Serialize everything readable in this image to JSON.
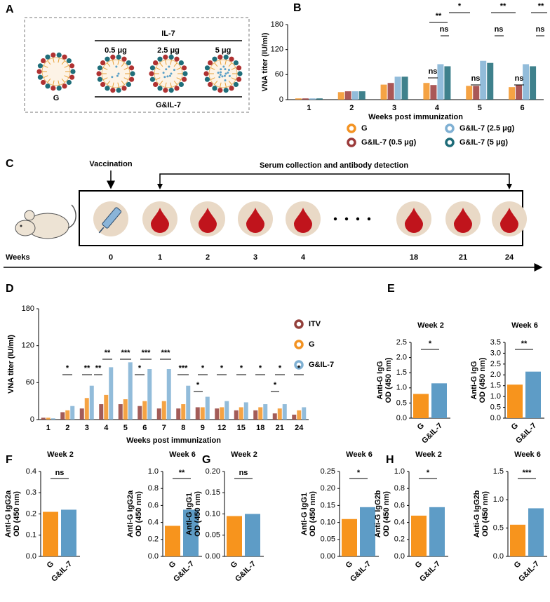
{
  "panel_labels": [
    "A",
    "B",
    "C",
    "D",
    "E",
    "F",
    "G",
    "H"
  ],
  "diagram_a": {
    "top_label": "IL-7",
    "doses": [
      "0.5 μg",
      "2.5 μg",
      "5 μg"
    ],
    "left_label": "G",
    "bottom_label": "G&IL-7"
  },
  "diagram_c": {
    "vaccination": "Vaccination",
    "collection": "Serum collection and antibody detection",
    "weeks_label": "Weeks",
    "weeks": [
      "0",
      "1",
      "2",
      "3",
      "4",
      "18",
      "21",
      "24"
    ]
  },
  "chart_data": [
    {
      "type": "bar",
      "ylabel": "VNA titer (IU/ml)",
      "xlabel": "Weeks post  immunization",
      "categories": [
        "1",
        "2",
        "3",
        "4",
        "5",
        "6"
      ],
      "series": [
        {
          "name": "G",
          "color": "#f39323",
          "values": [
            3,
            18,
            36,
            40,
            33,
            30
          ]
        },
        {
          "name": "G&IL-7 (0.5 μg)",
          "color": "#9b3a3a",
          "values": [
            3,
            20,
            40,
            35,
            33,
            35
          ]
        },
        {
          "name": "G&IL-7 (2.5 μg)",
          "color": "#7fb0d3",
          "values": [
            3,
            20,
            55,
            85,
            93,
            85
          ]
        },
        {
          "name": "G&IL-7 (5 μg)",
          "color": "#1d6b78",
          "values": [
            3,
            20,
            55,
            80,
            88,
            80
          ]
        }
      ],
      "ylim": [
        0,
        180
      ],
      "yticks": [
        0,
        60,
        120,
        180
      ],
      "annotations": [
        "*",
        "**",
        "ns",
        "**",
        "ns",
        "**",
        "ns",
        "ns",
        "ns",
        "ns"
      ]
    },
    {
      "type": "bar",
      "ylabel": "VNA titer (IU/ml)",
      "xlabel": "Weeks post immunization",
      "categories": [
        "1",
        "2",
        "3",
        "4",
        "5",
        "6",
        "7",
        "8",
        "9",
        "12",
        "15",
        "18",
        "21",
        "24"
      ],
      "series": [
        {
          "name": "ITV",
          "color": "#93403b",
          "values": [
            3,
            12,
            18,
            25,
            25,
            22,
            18,
            18,
            20,
            18,
            15,
            15,
            10,
            8
          ]
        },
        {
          "name": "G",
          "color": "#f39323",
          "values": [
            3,
            15,
            35,
            40,
            33,
            30,
            30,
            25,
            20,
            20,
            20,
            20,
            18,
            15
          ]
        },
        {
          "name": "G&IL-7",
          "color": "#7fb0d3",
          "values": [
            2,
            22,
            55,
            85,
            93,
            82,
            82,
            55,
            37,
            30,
            28,
            25,
            25,
            20
          ]
        }
      ],
      "ylim": [
        0,
        180
      ],
      "yticks": [
        0,
        60,
        120,
        180
      ],
      "annotations": [
        "*",
        "**",
        "**",
        "**",
        "***",
        "*",
        "***",
        "***",
        "***",
        "*",
        "*",
        "*",
        "*",
        "*",
        "*",
        "*",
        "*"
      ]
    },
    {
      "type": "bar",
      "title": "Week 2",
      "ylabel": [
        "Anti-G IgG",
        "OD (450 nm)"
      ],
      "categories": [
        "G",
        "G&IL-7"
      ],
      "values": [
        0.8,
        1.15
      ],
      "colors": [
        "#f7941d",
        "#5e9cc6"
      ],
      "ylim": [
        0,
        2.5
      ],
      "yticks": [
        {
          "value": 0,
          "label": "0.0"
        },
        0.5,
        {
          "value": 1,
          "label": "1.0"
        },
        1.5,
        {
          "value": 2,
          "label": "2.0"
        },
        2.5
      ],
      "annotations": [
        "*"
      ]
    },
    {
      "type": "bar",
      "title": "Week 6",
      "ylabel": [
        "Anti-G IgG",
        "OD (450 nm)"
      ],
      "categories": [
        "G",
        "G&IL-7"
      ],
      "values": [
        1.55,
        2.15
      ],
      "colors": [
        "#f7941d",
        "#5e9cc6"
      ],
      "ylim": [
        0,
        3.5
      ],
      "yticks": [
        {
          "value": 0,
          "label": "0.0"
        },
        0.5,
        {
          "value": 1,
          "label": "1.0"
        },
        1.5,
        {
          "value": 2,
          "label": "2.0"
        },
        2.5,
        {
          "value": 3,
          "label": "3.0"
        },
        3.5
      ],
      "annotations": [
        "**"
      ]
    },
    {
      "type": "bar",
      "title": "Week 2",
      "ylabel": [
        "Anti-G IgG2a",
        "OD (450 nm)"
      ],
      "categories": [
        "G",
        "G&IL-7"
      ],
      "values": [
        0.21,
        0.22
      ],
      "colors": [
        "#f7941d",
        "#5e9cc6"
      ],
      "ylim": [
        0,
        0.4
      ],
      "yticks": [
        {
          "value": 0,
          "label": "0.0"
        },
        0.1,
        0.2,
        0.3,
        0.4
      ],
      "annotations": [
        "ns"
      ]
    },
    {
      "type": "bar",
      "title": "Week 6",
      "ylabel": [
        "Anti-G IgG2a",
        "OD (450 nm)"
      ],
      "categories": [
        "G",
        "G&IL-7"
      ],
      "values": [
        0.36,
        0.55
      ],
      "colors": [
        "#f7941d",
        "#5e9cc6"
      ],
      "ylim": [
        0,
        1.0
      ],
      "yticks": [
        {
          "value": 0,
          "label": "0.0"
        },
        0.2,
        0.4,
        0.6,
        0.8,
        {
          "value": 1,
          "label": "1.0"
        }
      ],
      "annotations": [
        "**"
      ]
    },
    {
      "type": "bar",
      "title": "Week 2",
      "ylabel": [
        "Anti-G IgG1",
        "OD (450 nm)"
      ],
      "categories": [
        "G",
        "G&IL-7"
      ],
      "values": [
        0.095,
        0.1
      ],
      "colors": [
        "#f7941d",
        "#5e9cc6"
      ],
      "ylim": [
        0,
        0.2
      ],
      "yticks": [
        {
          "value": 0,
          "label": "0.00"
        },
        0.05,
        {
          "value": 0.1,
          "label": "0.10"
        },
        0.15,
        {
          "value": 0.2,
          "label": "0.20"
        }
      ],
      "annotations": [
        "ns"
      ]
    },
    {
      "type": "bar",
      "title": "Week 6",
      "ylabel": [
        "Anti-G IgG1",
        "OD (450 nm)"
      ],
      "categories": [
        "G",
        "G&IL-7"
      ],
      "values": [
        0.11,
        0.145
      ],
      "colors": [
        "#f7941d",
        "#5e9cc6"
      ],
      "ylim": [
        0,
        0.25
      ],
      "yticks": [
        {
          "value": 0,
          "label": "0.00"
        },
        0.05,
        {
          "value": 0.1,
          "label": "0.10"
        },
        0.15,
        {
          "value": 0.2,
          "label": "0.20"
        },
        0.25
      ],
      "annotations": [
        "*"
      ]
    },
    {
      "type": "bar",
      "title": "Week 2",
      "ylabel": [
        "Anti-G IgG2b",
        "OD (450 nm)"
      ],
      "categories": [
        "G",
        "G&IL-7"
      ],
      "values": [
        0.48,
        0.58
      ],
      "colors": [
        "#f7941d",
        "#5e9cc6"
      ],
      "ylim": [
        0,
        1.0
      ],
      "yticks": [
        {
          "value": 0,
          "label": "0.0"
        },
        0.2,
        0.4,
        0.6,
        0.8,
        {
          "value": 1,
          "label": "1.0"
        }
      ],
      "annotations": [
        "*"
      ]
    },
    {
      "type": "bar",
      "title": "Week 6",
      "ylabel": [
        "Anti-G IgG2b",
        "OD (450 nm)"
      ],
      "categories": [
        "G",
        "G&IL-7"
      ],
      "values": [
        0.56,
        0.85
      ],
      "colors": [
        "#f7941d",
        "#5e9cc6"
      ],
      "ylim": [
        0,
        1.5
      ],
      "yticks": [
        {
          "value": 0,
          "label": "0.0"
        },
        0.5,
        {
          "value": 1,
          "label": "1.0"
        },
        1.5
      ],
      "annotations": [
        "***"
      ]
    }
  ]
}
